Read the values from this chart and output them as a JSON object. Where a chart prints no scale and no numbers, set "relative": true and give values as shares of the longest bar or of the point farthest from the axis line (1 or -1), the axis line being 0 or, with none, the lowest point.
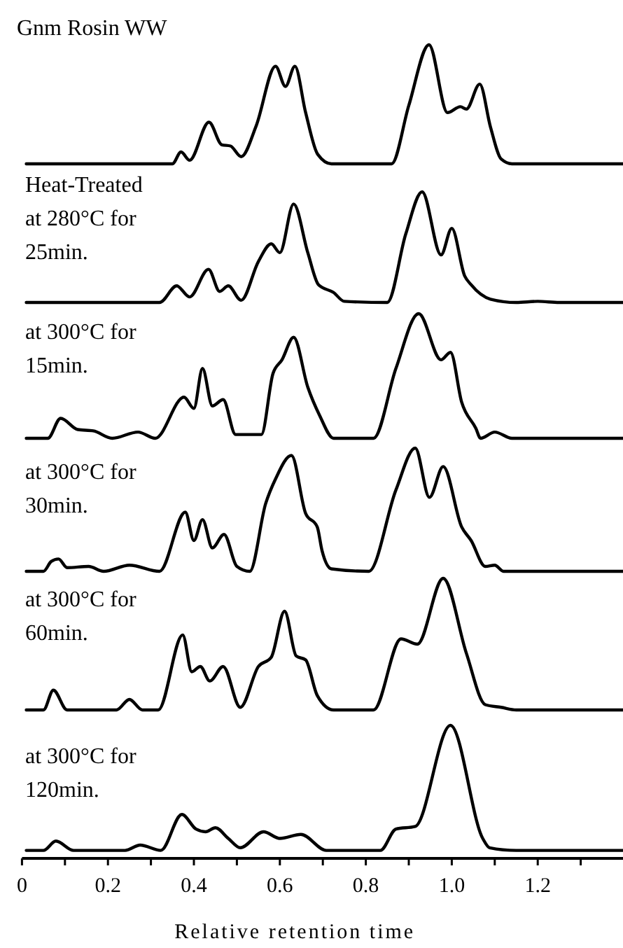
{
  "chart_data": [
    {
      "type": "line",
      "title": "Gnm Rosin WW",
      "relative": true,
      "xlim": [
        0,
        1.4
      ],
      "tick_labels": false,
      "color": "#000000",
      "x": [
        0.01,
        0.35,
        0.37,
        0.39,
        0.435,
        0.465,
        0.485,
        0.51,
        0.545,
        0.59,
        0.613,
        0.635,
        0.66,
        0.688,
        0.72,
        0.86,
        0.9,
        0.947,
        0.99,
        1.02,
        1.034,
        1.065,
        1.09,
        1.115,
        1.14,
        1.4
      ],
      "values": [
        0,
        0,
        0.1,
        0.03,
        0.35,
        0.16,
        0.15,
        0.06,
        0.32,
        0.82,
        0.65,
        0.82,
        0.43,
        0.08,
        0,
        0,
        0.49,
        1.0,
        0.43,
        0.48,
        0.46,
        0.67,
        0.31,
        0.04,
        0,
        0
      ]
    },
    {
      "type": "line",
      "title": "Heat-Treated\nat 280°C for\n25min.",
      "relative": true,
      "xlim": [
        0,
        1.4
      ],
      "tick_labels": false,
      "color": "#000000",
      "x": [
        0.01,
        0.32,
        0.36,
        0.39,
        0.434,
        0.46,
        0.48,
        0.51,
        0.55,
        0.58,
        0.6,
        0.632,
        0.665,
        0.69,
        0.725,
        0.75,
        0.85,
        0.893,
        0.931,
        0.975,
        1.0,
        1.03,
        1.045,
        1.09,
        1.15,
        1.2,
        1.25,
        1.4
      ],
      "values": [
        0,
        0,
        0.15,
        0.05,
        0.3,
        0.1,
        0.15,
        0.02,
        0.37,
        0.53,
        0.45,
        0.89,
        0.45,
        0.16,
        0.09,
        0.01,
        0,
        0.62,
        1.0,
        0.43,
        0.67,
        0.24,
        0.16,
        0.03,
        0,
        0.01,
        0,
        0
      ]
    },
    {
      "type": "line",
      "title": "at 300°C for\n15min.",
      "relative": true,
      "xlim": [
        0,
        1.4
      ],
      "tick_labels": false,
      "color": "#000000",
      "x": [
        0.01,
        0.06,
        0.09,
        0.13,
        0.166,
        0.21,
        0.27,
        0.31,
        0.377,
        0.4,
        0.42,
        0.443,
        0.468,
        0.497,
        0.557,
        0.584,
        0.605,
        0.632,
        0.665,
        0.693,
        0.725,
        0.818,
        0.87,
        0.923,
        0.975,
        0.997,
        1.023,
        1.056,
        1.067,
        1.1,
        1.14,
        1.4
      ],
      "values": [
        0,
        0,
        0.16,
        0.07,
        0.06,
        0,
        0.05,
        0,
        0.33,
        0.24,
        0.56,
        0.26,
        0.31,
        0.03,
        0.03,
        0.52,
        0.63,
        0.81,
        0.41,
        0.18,
        0,
        0,
        0.56,
        1.0,
        0.63,
        0.69,
        0.29,
        0.08,
        0,
        0.05,
        0,
        0
      ]
    },
    {
      "type": "line",
      "title": "at 300°C for\n30min.",
      "relative": true,
      "xlim": [
        0,
        1.4
      ],
      "tick_labels": false,
      "color": "#000000",
      "x": [
        0.01,
        0.05,
        0.068,
        0.085,
        0.105,
        0.155,
        0.19,
        0.25,
        0.32,
        0.38,
        0.4,
        0.42,
        0.443,
        0.47,
        0.5,
        0.53,
        0.567,
        0.59,
        0.627,
        0.66,
        0.687,
        0.698,
        0.72,
        0.807,
        0.87,
        0.915,
        0.948,
        0.98,
        1.023,
        1.045,
        1.078,
        1.1,
        1.12,
        1.4
      ],
      "values": [
        0,
        0,
        0.08,
        0.1,
        0.03,
        0.04,
        0,
        0.05,
        0,
        0.48,
        0.25,
        0.42,
        0.19,
        0.3,
        0.04,
        0,
        0.55,
        0.75,
        0.94,
        0.47,
        0.36,
        0.17,
        0.02,
        0,
        0.66,
        1.0,
        0.6,
        0.85,
        0.36,
        0.25,
        0.04,
        0.05,
        0,
        0
      ]
    },
    {
      "type": "line",
      "title": "at 300°C for\n60min.",
      "relative": true,
      "xlim": [
        0,
        1.4
      ],
      "tick_labels": false,
      "color": "#000000",
      "x": [
        0.01,
        0.05,
        0.073,
        0.105,
        0.22,
        0.25,
        0.28,
        0.317,
        0.374,
        0.395,
        0.415,
        0.437,
        0.468,
        0.508,
        0.55,
        0.58,
        0.611,
        0.638,
        0.66,
        0.687,
        0.725,
        0.818,
        0.882,
        0.92,
        0.98,
        1.034,
        1.078,
        1.115,
        1.15,
        1.4
      ],
      "values": [
        0,
        0,
        0.15,
        0,
        0,
        0.08,
        0,
        0,
        0.57,
        0.29,
        0.33,
        0.22,
        0.33,
        0.02,
        0.33,
        0.4,
        0.75,
        0.41,
        0.38,
        0.11,
        0,
        0,
        0.54,
        0.5,
        1.0,
        0.43,
        0.04,
        0.02,
        0,
        0
      ]
    },
    {
      "type": "line",
      "title": "at 300°C for\n120min.",
      "relative": true,
      "xlim": [
        0,
        1.4
      ],
      "tick_labels": "x",
      "color": "#000000",
      "xlabel": "Relative retention time",
      "xticks": [
        0,
        {
          "value": 0.1,
          "label": null
        },
        0.2,
        {
          "value": 0.3,
          "label": null
        },
        0.4,
        {
          "value": 0.5,
          "label": null
        },
        0.6,
        {
          "value": 0.7,
          "label": null
        },
        0.8,
        {
          "value": 0.9,
          "label": null
        },
        {
          "value": 1,
          "label": "1.0"
        },
        {
          "value": 1.1,
          "label": null
        },
        1.2,
        {
          "value": 1.3,
          "label": null
        }
      ],
      "x": [
        0.01,
        0.05,
        0.079,
        0.12,
        0.24,
        0.275,
        0.323,
        0.372,
        0.405,
        0.427,
        0.45,
        0.48,
        0.508,
        0.562,
        0.6,
        0.649,
        0.708,
        0.834,
        0.87,
        0.915,
        0.997,
        1.072,
        1.088,
        1.15,
        1.4
      ],
      "values": [
        0.06,
        0.06,
        0.13,
        0.06,
        0.06,
        0.1,
        0.06,
        0.33,
        0.22,
        0.2,
        0.23,
        0.15,
        0.08,
        0.2,
        0.15,
        0.18,
        0.06,
        0.06,
        0.22,
        0.24,
        1.0,
        0.15,
        0.08,
        0.06,
        0.06
      ]
    }
  ]
}
